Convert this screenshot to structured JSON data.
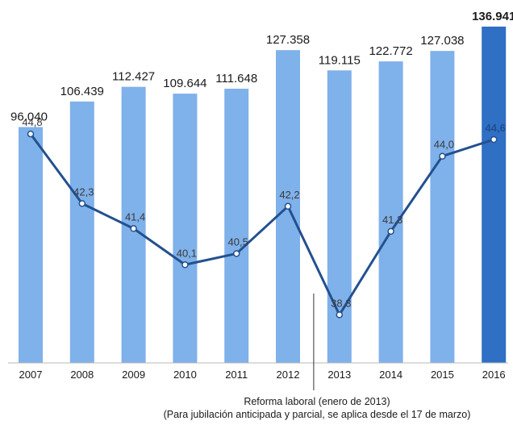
{
  "chart_data": {
    "type": "bar",
    "categories": [
      "2007",
      "2008",
      "2009",
      "2010",
      "2011",
      "2012",
      "2013",
      "2014",
      "2015",
      "2016"
    ],
    "series": [
      {
        "values": [
          96040,
          106439,
          112427,
          109644,
          111648,
          127358,
          119115,
          122772,
          127038,
          136941
        ],
        "labels": [
          "96.040",
          "106.439",
          "112.427",
          "109.644",
          "111.648",
          "127.358",
          "119.115",
          "122.772",
          "127.038",
          "136.941"
        ]
      },
      {
        "type": "line",
        "values": [
          44.8,
          42.3,
          41.4,
          40.1,
          40.5,
          42.2,
          38.3,
          41.3,
          44.0,
          44.6
        ],
        "labels": [
          "44,8",
          "42,3",
          "41,4",
          "40,1",
          "40,5",
          "42,2",
          "38,3",
          "41,3",
          "44,0",
          "44,6"
        ]
      }
    ],
    "bar_ylim": [
      0,
      140000
    ],
    "line_ylim": [
      36.6,
      48.2
    ],
    "highlight_category": "2016",
    "annotation": {
      "category_position": 5.5,
      "lines": [
        "Reforma laboral (enero de 2013)",
        "(Para jubilación anticipada y parcial, se aplica desde el 17 de marzo)"
      ]
    },
    "colors": {
      "bar": "#7fb1ea",
      "bar_highlight": "#2f6fc4",
      "line": "#23508f",
      "marker_fill": "#ffffff",
      "axis": "#b8b8b8"
    },
    "grid": false,
    "legend": "none"
  }
}
